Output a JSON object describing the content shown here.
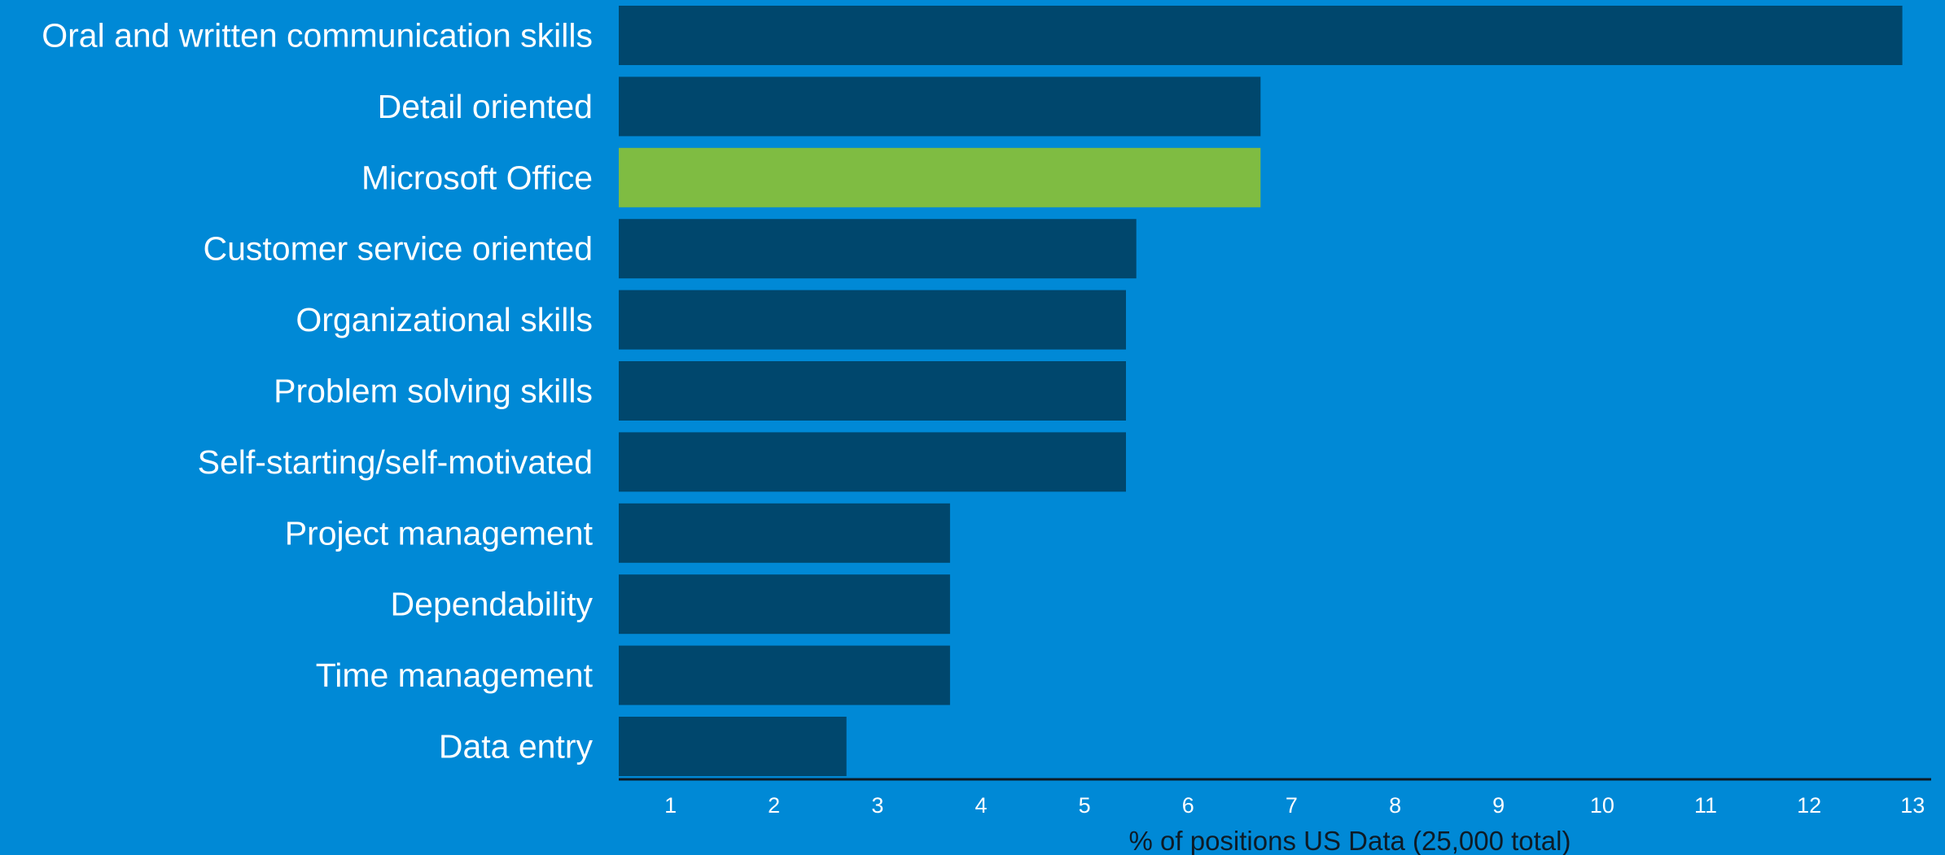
{
  "chart_data": {
    "type": "bar",
    "orientation": "horizontal",
    "categories": [
      "Oral and written communication skills",
      "Detail oriented",
      "Microsoft Office",
      "Customer service oriented",
      "Organizational skills",
      "Problem solving skills",
      "Self-starting/self-motivated",
      "Project management",
      "Dependability",
      "Time management",
      "Data entry"
    ],
    "values": [
      12.9,
      6.7,
      6.7,
      5.5,
      5.4,
      5.4,
      5.4,
      3.7,
      3.7,
      3.7,
      2.7
    ],
    "highlight_index": 2,
    "xlabel": "% of positions US Data (25,000 total)",
    "xticks": [
      1,
      2,
      3,
      4,
      5,
      6,
      7,
      8,
      9,
      10,
      11,
      12,
      13
    ],
    "xlim": [
      0.5,
      13.1
    ],
    "grid": false,
    "legend": "none",
    "colors": {
      "background": "#0089d6",
      "bar": "#00476d",
      "highlight": "#7fbc42",
      "text": "#ffffff",
      "axis_title": "#0d1b26",
      "axis_line": "#0d1b26"
    }
  }
}
